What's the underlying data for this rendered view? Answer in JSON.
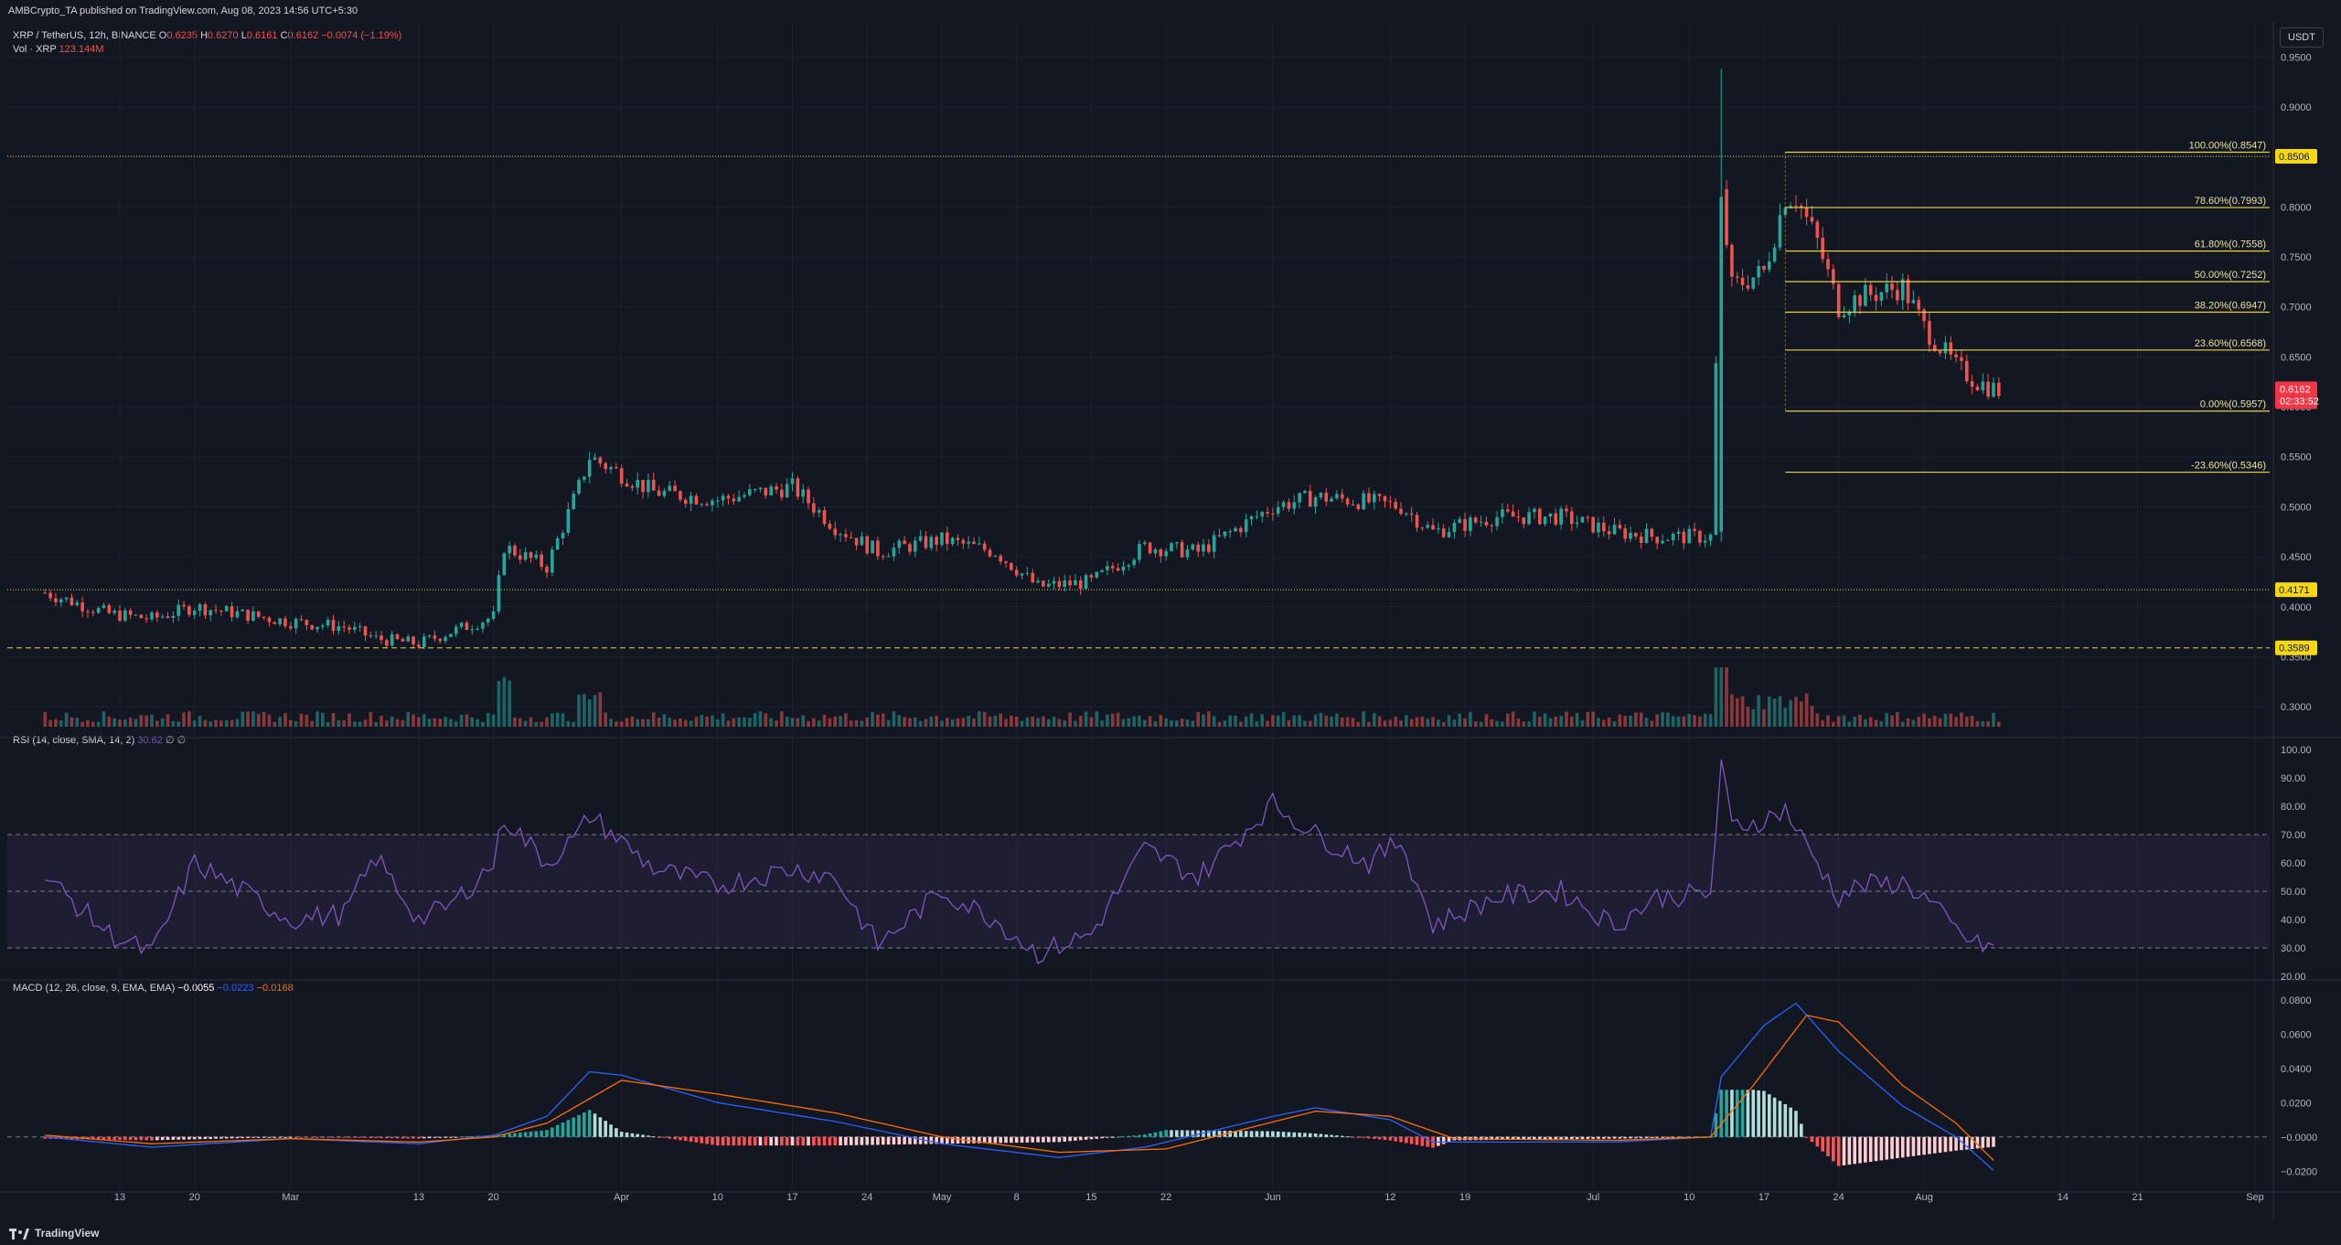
{
  "header": {
    "published": "AMBCrypto_TA published on TradingView.com, Aug 08, 2023 14:56 UTC+5:30"
  },
  "legend": {
    "symbol": "XRP / TetherUS, 12h, BINANCE",
    "o_label": "O",
    "o_value": "0.6235",
    "h_label": "H",
    "h_value": "0.6270",
    "l_label": "L",
    "l_value": "0.6161",
    "c_label": "C",
    "c_value": "0.6162",
    "change": "−0.0074 (−1.19%)"
  },
  "volume_legend": {
    "label": "Vol · XRP",
    "value": "123.144M"
  },
  "rsi_legend": {
    "label": "RSI (14, close, SMA, 14, 2)",
    "value": "30.62",
    "extra": "∅ ∅"
  },
  "macd_legend": {
    "label": "MACD (12, 26, close, 9, EMA, EMA)",
    "hist": "−0.0055",
    "macd": "−0.0223",
    "signal": "−0.0168"
  },
  "currency_button": "USDT",
  "footer": {
    "brand": "TradingView"
  },
  "colors": {
    "background": "#131722",
    "up": "#26a69a",
    "down": "#ef5350",
    "fib": "#e6d34a",
    "level_label_bg": "#f5d80f",
    "rsi": "#7e57c2",
    "rsi_band": "#7e57c2",
    "macd": "#2962ff",
    "signal": "#ff6d00",
    "hist_up_strong": "#26a69a",
    "hist_up_weak": "#b2dfdb",
    "hist_down_strong": "#ff5252",
    "hist_down_weak": "#ffcdd2",
    "grid": "#1e222d",
    "axis_text": "#b2b5be"
  },
  "chart_data": [
    {
      "type": "candlestick",
      "title": "XRP / TetherUS, 12h, BINANCE",
      "ylim": [
        0.28,
        0.985
      ],
      "y_ticks": [
        "0.9500",
        "0.9000",
        "0.8500",
        "0.8000",
        "0.7500",
        "0.7000",
        "0.6500",
        "0.6000",
        "0.5500",
        "0.5000",
        "0.4500",
        "0.4000",
        "0.3500",
        "0.3000"
      ],
      "x_ticks": [
        "13",
        "20",
        "Mar",
        "13",
        "20",
        "Apr",
        "10",
        "17",
        "24",
        "May",
        "8",
        "15",
        "22",
        "Jun",
        "12",
        "19",
        "Jul",
        "10",
        "17",
        "24",
        "Aug",
        "14",
        "21",
        "Sep"
      ],
      "price_path": [
        {
          "date": "2023-02-06",
          "price": 0.414
        },
        {
          "date": "2023-02-12",
          "price": 0.393
        },
        {
          "date": "2023-02-16",
          "price": 0.388
        },
        {
          "date": "2023-02-20",
          "price": 0.4
        },
        {
          "date": "2023-03-01",
          "price": 0.385
        },
        {
          "date": "2023-03-06",
          "price": 0.38
        },
        {
          "date": "2023-03-09",
          "price": 0.368
        },
        {
          "date": "2023-03-13",
          "price": 0.363
        },
        {
          "date": "2023-03-16",
          "price": 0.375
        },
        {
          "date": "2023-03-20",
          "price": 0.39
        },
        {
          "date": "2023-03-21",
          "price": 0.46
        },
        {
          "date": "2023-03-25",
          "price": 0.44
        },
        {
          "date": "2023-03-28",
          "price": 0.52
        },
        {
          "date": "2023-03-29",
          "price": 0.55
        },
        {
          "date": "2023-04-04",
          "price": 0.515
        },
        {
          "date": "2023-04-10",
          "price": 0.507
        },
        {
          "date": "2023-04-17",
          "price": 0.52
        },
        {
          "date": "2023-04-21",
          "price": 0.48
        },
        {
          "date": "2023-04-25",
          "price": 0.455
        },
        {
          "date": "2023-05-01",
          "price": 0.467
        },
        {
          "date": "2023-05-06",
          "price": 0.455
        },
        {
          "date": "2023-05-10",
          "price": 0.42
        },
        {
          "date": "2023-05-15",
          "price": 0.425
        },
        {
          "date": "2023-05-20",
          "price": 0.46
        },
        {
          "date": "2023-05-25",
          "price": 0.455
        },
        {
          "date": "2023-06-01",
          "price": 0.5
        },
        {
          "date": "2023-06-05",
          "price": 0.51
        },
        {
          "date": "2023-06-10",
          "price": 0.505
        },
        {
          "date": "2023-06-13",
          "price": 0.5
        },
        {
          "date": "2023-06-16",
          "price": 0.475
        },
        {
          "date": "2023-06-22",
          "price": 0.49
        },
        {
          "date": "2023-06-28",
          "price": 0.49
        },
        {
          "date": "2023-07-03",
          "price": 0.475
        },
        {
          "date": "2023-07-07",
          "price": 0.47
        },
        {
          "date": "2023-07-12",
          "price": 0.47
        },
        {
          "date": "2023-07-13",
          "price": 0.81
        },
        {
          "date": "2023-07-14",
          "price": 0.72
        },
        {
          "date": "2023-07-17",
          "price": 0.735
        },
        {
          "date": "2023-07-19",
          "price": 0.81
        },
        {
          "date": "2023-07-20",
          "price": 0.81
        },
        {
          "date": "2023-07-22",
          "price": 0.765
        },
        {
          "date": "2023-07-24",
          "price": 0.7
        },
        {
          "date": "2023-07-26",
          "price": 0.71
        },
        {
          "date": "2023-07-30",
          "price": 0.72
        },
        {
          "date": "2023-08-01",
          "price": 0.68
        },
        {
          "date": "2023-08-04",
          "price": 0.64
        },
        {
          "date": "2023-08-06",
          "price": 0.625
        },
        {
          "date": "2023-08-08",
          "price": 0.6162
        }
      ],
      "horizontal_levels": [
        {
          "price": 0.8506,
          "label": "0.8506",
          "style": "dotted"
        },
        {
          "price": 0.4171,
          "label": "0.4171",
          "style": "dotted"
        },
        {
          "price": 0.3589,
          "label": "0.3589",
          "style": "dashed"
        }
      ],
      "fibonacci": {
        "start_date": "2023-07-19",
        "levels": [
          {
            "label": "100.00%(0.8547)",
            "price": 0.8547
          },
          {
            "label": "78.60%(0.7993)",
            "price": 0.7993
          },
          {
            "label": "61.80%(0.7558)",
            "price": 0.7558
          },
          {
            "label": "50.00%(0.7252)",
            "price": 0.7252
          },
          {
            "label": "38.20%(0.6947)",
            "price": 0.6947
          },
          {
            "label": "23.60%(0.6568)",
            "price": 0.6568
          },
          {
            "label": "0.00%(0.5957)",
            "price": 0.5957
          },
          {
            "label": "-23.60%(0.5346)",
            "price": 0.5346
          }
        ]
      },
      "last_price": {
        "label": "0.6162",
        "countdown": "02:33:52"
      }
    },
    {
      "type": "line",
      "title": "RSI (14, close, SMA, 14, 2)",
      "ylim": [
        20,
        100
      ],
      "y_ticks": [
        "100.00",
        "90.00",
        "80.00",
        "70.00",
        "60.00",
        "50.00",
        "40.00",
        "30.00",
        "20.00"
      ],
      "band": [
        30,
        70
      ],
      "midline": 50,
      "series": [
        {
          "name": "RSI",
          "points": [
            {
              "date": "2023-02-06",
              "value": 55
            },
            {
              "date": "2023-02-12",
              "value": 35
            },
            {
              "date": "2023-02-16",
              "value": 28
            },
            {
              "date": "2023-02-20",
              "value": 60
            },
            {
              "date": "2023-03-01",
              "value": 40
            },
            {
              "date": "2023-03-06",
              "value": 42
            },
            {
              "date": "2023-03-09",
              "value": 62
            },
            {
              "date": "2023-03-13",
              "value": 40
            },
            {
              "date": "2023-03-16",
              "value": 45
            },
            {
              "date": "2023-03-20",
              "value": 60
            },
            {
              "date": "2023-03-21",
              "value": 76
            },
            {
              "date": "2023-03-25",
              "value": 60
            },
            {
              "date": "2023-03-28",
              "value": 70
            },
            {
              "date": "2023-03-29",
              "value": 77
            },
            {
              "date": "2023-04-04",
              "value": 58
            },
            {
              "date": "2023-04-10",
              "value": 52
            },
            {
              "date": "2023-04-17",
              "value": 58
            },
            {
              "date": "2023-04-21",
              "value": 55
            },
            {
              "date": "2023-04-25",
              "value": 31
            },
            {
              "date": "2023-05-01",
              "value": 50
            },
            {
              "date": "2023-05-06",
              "value": 40
            },
            {
              "date": "2023-05-10",
              "value": 28
            },
            {
              "date": "2023-05-15",
              "value": 35
            },
            {
              "date": "2023-05-20",
              "value": 65
            },
            {
              "date": "2023-05-25",
              "value": 55
            },
            {
              "date": "2023-06-01",
              "value": 81
            },
            {
              "date": "2023-06-05",
              "value": 70
            },
            {
              "date": "2023-06-10",
              "value": 60
            },
            {
              "date": "2023-06-13",
              "value": 68
            },
            {
              "date": "2023-06-16",
              "value": 38
            },
            {
              "date": "2023-06-22",
              "value": 48
            },
            {
              "date": "2023-06-28",
              "value": 50
            },
            {
              "date": "2023-07-03",
              "value": 38
            },
            {
              "date": "2023-07-07",
              "value": 48
            },
            {
              "date": "2023-07-12",
              "value": 49
            },
            {
              "date": "2023-07-13",
              "value": 94
            },
            {
              "date": "2023-07-14",
              "value": 73
            },
            {
              "date": "2023-07-17",
              "value": 75
            },
            {
              "date": "2023-07-19",
              "value": 79
            },
            {
              "date": "2023-07-20",
              "value": 72
            },
            {
              "date": "2023-07-22",
              "value": 60
            },
            {
              "date": "2023-07-24",
              "value": 48
            },
            {
              "date": "2023-07-26",
              "value": 52
            },
            {
              "date": "2023-07-30",
              "value": 53
            },
            {
              "date": "2023-08-01",
              "value": 48
            },
            {
              "date": "2023-08-04",
              "value": 36
            },
            {
              "date": "2023-08-06",
              "value": 31
            },
            {
              "date": "2023-08-08",
              "value": 30.62
            }
          ]
        }
      ]
    },
    {
      "type": "line",
      "title": "MACD (12, 26, close, 9, EMA, EMA)",
      "ylim": [
        -0.03,
        0.09
      ],
      "y_ticks": [
        "0.0800",
        "0.0600",
        "0.0400",
        "0.0200",
        "−0.0000",
        "−0.0200"
      ],
      "series": [
        {
          "name": "MACD",
          "points": [
            {
              "date": "2023-02-06",
              "value": 0.0
            },
            {
              "date": "2023-02-16",
              "value": -0.006
            },
            {
              "date": "2023-03-01",
              "value": -0.001
            },
            {
              "date": "2023-03-13",
              "value": -0.004
            },
            {
              "date": "2023-03-20",
              "value": 0.001
            },
            {
              "date": "2023-03-25",
              "value": 0.012
            },
            {
              "date": "2023-03-29",
              "value": 0.038
            },
            {
              "date": "2023-04-01",
              "value": 0.036
            },
            {
              "date": "2023-04-10",
              "value": 0.02
            },
            {
              "date": "2023-04-21",
              "value": 0.009
            },
            {
              "date": "2023-05-01",
              "value": -0.004
            },
            {
              "date": "2023-05-12",
              "value": -0.012
            },
            {
              "date": "2023-05-20",
              "value": -0.006
            },
            {
              "date": "2023-06-01",
              "value": 0.012
            },
            {
              "date": "2023-06-05",
              "value": 0.017
            },
            {
              "date": "2023-06-12",
              "value": 0.01
            },
            {
              "date": "2023-06-16",
              "value": -0.003
            },
            {
              "date": "2023-07-03",
              "value": -0.003
            },
            {
              "date": "2023-07-12",
              "value": 0.0
            },
            {
              "date": "2023-07-13",
              "value": 0.035
            },
            {
              "date": "2023-07-17",
              "value": 0.065
            },
            {
              "date": "2023-07-20",
              "value": 0.078
            },
            {
              "date": "2023-07-24",
              "value": 0.05
            },
            {
              "date": "2023-07-30",
              "value": 0.018
            },
            {
              "date": "2023-08-04",
              "value": 0.0
            },
            {
              "date": "2023-08-08",
              "value": -0.0223
            }
          ]
        },
        {
          "name": "Signal",
          "points": [
            {
              "date": "2023-02-06",
              "value": 0.001
            },
            {
              "date": "2023-02-16",
              "value": -0.004
            },
            {
              "date": "2023-03-01",
              "value": -0.001
            },
            {
              "date": "2023-03-13",
              "value": -0.003
            },
            {
              "date": "2023-03-20",
              "value": 0.0
            },
            {
              "date": "2023-03-25",
              "value": 0.008
            },
            {
              "date": "2023-04-01",
              "value": 0.033
            },
            {
              "date": "2023-04-10",
              "value": 0.025
            },
            {
              "date": "2023-04-21",
              "value": 0.014
            },
            {
              "date": "2023-05-01",
              "value": 0.0
            },
            {
              "date": "2023-05-12",
              "value": -0.009
            },
            {
              "date": "2023-05-22",
              "value": -0.007
            },
            {
              "date": "2023-06-05",
              "value": 0.015
            },
            {
              "date": "2023-06-12",
              "value": 0.012
            },
            {
              "date": "2023-06-18",
              "value": -0.001
            },
            {
              "date": "2023-07-03",
              "value": -0.002
            },
            {
              "date": "2023-07-12",
              "value": 0.0
            },
            {
              "date": "2023-07-16",
              "value": 0.03
            },
            {
              "date": "2023-07-21",
              "value": 0.071
            },
            {
              "date": "2023-07-24",
              "value": 0.067
            },
            {
              "date": "2023-07-30",
              "value": 0.03
            },
            {
              "date": "2023-08-04",
              "value": 0.008
            },
            {
              "date": "2023-08-08",
              "value": -0.0168
            }
          ]
        }
      ],
      "histogram": [
        {
          "date": "2023-02-16",
          "value": -0.002
        },
        {
          "date": "2023-03-29",
          "value": 0.01
        },
        {
          "date": "2023-04-21",
          "value": -0.004
        },
        {
          "date": "2023-05-12",
          "value": -0.006
        },
        {
          "date": "2023-06-01",
          "value": 0.004
        },
        {
          "date": "2023-06-16",
          "value": -0.007
        },
        {
          "date": "2023-07-14",
          "value": 0.033
        },
        {
          "date": "2023-07-17",
          "value": 0.024
        },
        {
          "date": "2023-07-24",
          "value": -0.018
        },
        {
          "date": "2023-08-01",
          "value": -0.01
        },
        {
          "date": "2023-08-08",
          "value": -0.0055
        }
      ]
    }
  ]
}
